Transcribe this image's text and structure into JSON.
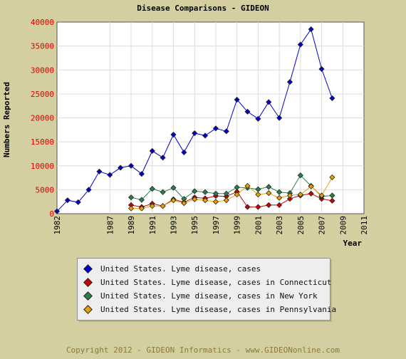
{
  "chart_data": {
    "type": "line",
    "title": "Disease Comparisons - GIDEON",
    "xlabel": "Year",
    "ylabel": "Numbers Reported",
    "xlim": [
      1982,
      2011
    ],
    "ylim": [
      0,
      40000
    ],
    "yticks": [
      0,
      5000,
      10000,
      15000,
      20000,
      25000,
      30000,
      35000,
      40000
    ],
    "xticks": [
      "1982",
      "1987",
      "1989",
      "1991",
      "1993",
      "1995",
      "1997",
      "1999",
      "2001",
      "2003",
      "2005",
      "2007",
      "2009",
      "2011"
    ],
    "grid": true,
    "series": [
      {
        "name": "United States. Lyme disease, cases",
        "color": "#0000cc",
        "points": [
          [
            1982,
            497
          ],
          [
            1983,
            2800
          ],
          [
            1984,
            2400
          ],
          [
            1985,
            5000
          ],
          [
            1986,
            8800
          ],
          [
            1987,
            8100
          ],
          [
            1988,
            9600
          ],
          [
            1989,
            10000
          ],
          [
            1990,
            8300
          ],
          [
            1991,
            13100
          ],
          [
            1992,
            11700
          ],
          [
            1993,
            16500
          ],
          [
            1994,
            12800
          ],
          [
            1995,
            16800
          ],
          [
            1996,
            16300
          ],
          [
            1997,
            17800
          ],
          [
            1998,
            17200
          ],
          [
            1999,
            23800
          ],
          [
            2000,
            21300
          ],
          [
            2001,
            19800
          ],
          [
            2002,
            23300
          ],
          [
            2003,
            20000
          ],
          [
            2004,
            27500
          ],
          [
            2005,
            35300
          ],
          [
            2006,
            38500
          ],
          [
            2007,
            30200
          ],
          [
            2008,
            24100
          ]
        ]
      },
      {
        "name": "United States. Lyme disease, cases in Connecticut",
        "color": "#cc0000",
        "points": [
          [
            1989,
            1800
          ],
          [
            1990,
            1400
          ],
          [
            1991,
            2100
          ],
          [
            1992,
            1600
          ],
          [
            1993,
            3000
          ],
          [
            1994,
            2400
          ],
          [
            1995,
            3400
          ],
          [
            1996,
            3200
          ],
          [
            1997,
            3700
          ],
          [
            1998,
            3600
          ],
          [
            1999,
            4600
          ],
          [
            2000,
            1400
          ],
          [
            2001,
            1400
          ],
          [
            2002,
            1800
          ],
          [
            2003,
            1800
          ],
          [
            2004,
            3100
          ],
          [
            2005,
            3800
          ],
          [
            2006,
            4200
          ],
          [
            2007,
            3100
          ],
          [
            2008,
            2700
          ]
        ]
      },
      {
        "name": "United States. Lyme disease, cases in New York",
        "color": "#2e7d4f",
        "points": [
          [
            1989,
            3400
          ],
          [
            1990,
            2900
          ],
          [
            1991,
            5200
          ],
          [
            1992,
            4500
          ],
          [
            1993,
            5400
          ],
          [
            1994,
            3100
          ],
          [
            1995,
            4700
          ],
          [
            1996,
            4500
          ],
          [
            1997,
            4200
          ],
          [
            1998,
            4200
          ],
          [
            1999,
            5500
          ],
          [
            2000,
            5400
          ],
          [
            2001,
            5100
          ],
          [
            2002,
            5600
          ],
          [
            2003,
            4500
          ],
          [
            2004,
            4300
          ],
          [
            2005,
            8000
          ],
          [
            2006,
            5800
          ],
          [
            2007,
            3600
          ],
          [
            2008,
            3800
          ]
        ]
      },
      {
        "name": "United States. Lyme disease, cases in Pennsylvania",
        "color": "#e8a200",
        "points": [
          [
            1989,
            1100
          ],
          [
            1990,
            1100
          ],
          [
            1991,
            1600
          ],
          [
            1992,
            1600
          ],
          [
            1993,
            2800
          ],
          [
            1994,
            2200
          ],
          [
            1995,
            3000
          ],
          [
            1996,
            2800
          ],
          [
            1997,
            2500
          ],
          [
            1998,
            2800
          ],
          [
            1999,
            4000
          ],
          [
            2000,
            5800
          ],
          [
            2001,
            4000
          ],
          [
            2002,
            4300
          ],
          [
            2003,
            3300
          ],
          [
            2004,
            3800
          ],
          [
            2005,
            4000
          ],
          [
            2006,
            5700
          ],
          [
            2007,
            3800
          ],
          [
            2008,
            7600
          ]
        ]
      }
    ]
  },
  "footer": "Copyright 2012 - GIDEON Informatics - www.GIDEONonline.com"
}
